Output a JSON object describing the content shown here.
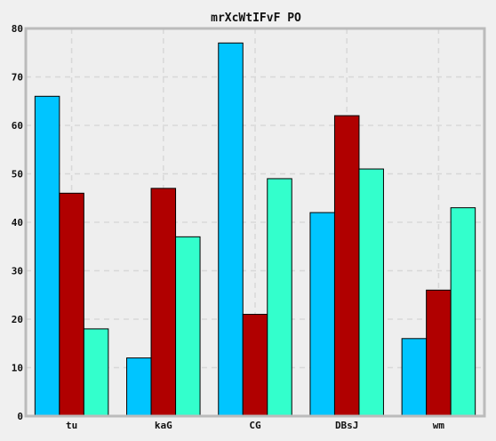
{
  "chart_data": {
    "type": "bar",
    "title": "mrXcWtIFvF PO",
    "categories": [
      "tu",
      "kaG",
      "CG",
      "DBsJ",
      "wm"
    ],
    "series": [
      {
        "values": [
          66,
          12,
          77,
          42,
          16
        ],
        "color": "#00c5ff"
      },
      {
        "values": [
          46,
          47,
          21,
          62,
          26
        ],
        "color": "#b00000"
      },
      {
        "values": [
          18,
          37,
          49,
          51,
          43
        ],
        "color": "#33ffcc"
      }
    ],
    "xlabel": "",
    "ylabel": "",
    "ylim": [
      0,
      80
    ],
    "yticks": [
      "0",
      "10",
      "20",
      "30",
      "40",
      "50",
      "60",
      "70",
      "80"
    ],
    "grid": true,
    "legend": "none"
  },
  "colors": {
    "background": "#f0f0f0",
    "plot_background": "#eeeeee",
    "frame": "#bbbbbb",
    "grid": "#d8d8d8",
    "bar_edge": "#000000"
  }
}
